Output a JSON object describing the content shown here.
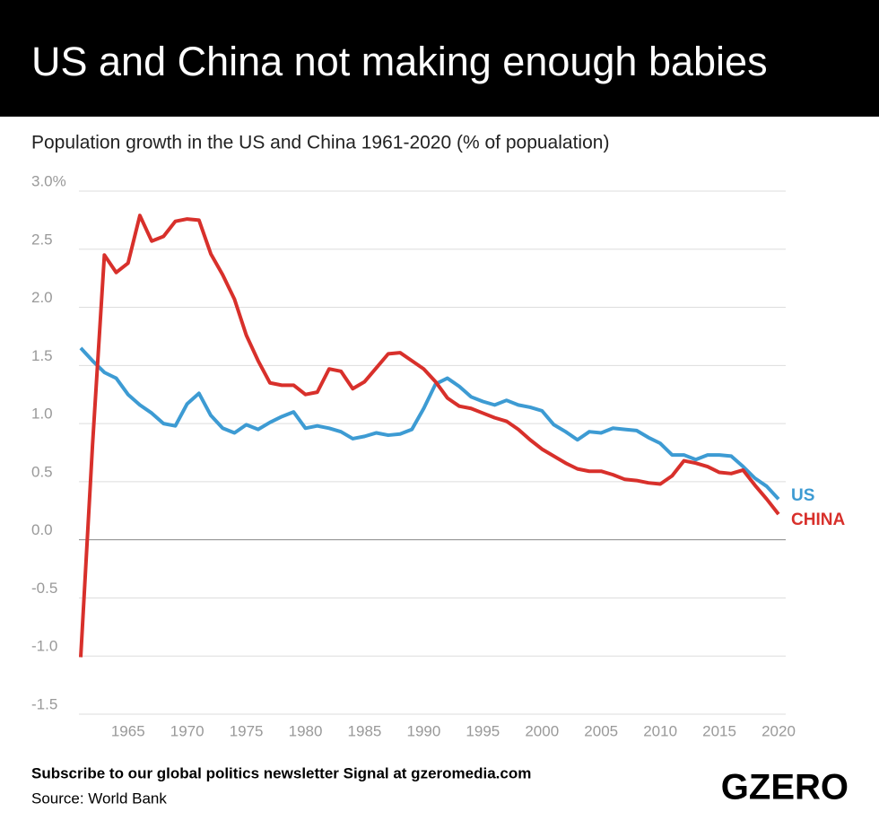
{
  "chart_data": {
    "type": "line",
    "title": "US and China not making enough babies",
    "subtitle": "Population growth in the US and China 1961-2020 (% of popualation)",
    "footer": "Subscribe to our global politics newsletter Signal at gzeromedia.com",
    "source": "Source: World Bank",
    "logo": "GZERO",
    "x": [
      1961,
      1962,
      1963,
      1964,
      1965,
      1966,
      1967,
      1968,
      1969,
      1970,
      1971,
      1972,
      1973,
      1974,
      1975,
      1976,
      1977,
      1978,
      1979,
      1980,
      1981,
      1982,
      1983,
      1984,
      1985,
      1986,
      1987,
      1988,
      1989,
      1990,
      1991,
      1992,
      1993,
      1994,
      1995,
      1996,
      1997,
      1998,
      1999,
      2000,
      2001,
      2002,
      2003,
      2004,
      2005,
      2006,
      2007,
      2008,
      2009,
      2010,
      2011,
      2012,
      2013,
      2014,
      2015,
      2016,
      2017,
      2018,
      2019,
      2020
    ],
    "series": [
      {
        "name": "US",
        "color": "#3d9bd3",
        "values": [
          1.65,
          1.54,
          1.44,
          1.39,
          1.25,
          1.16,
          1.09,
          1.0,
          0.98,
          1.17,
          1.26,
          1.07,
          0.96,
          0.92,
          0.99,
          0.95,
          1.01,
          1.06,
          1.1,
          0.96,
          0.98,
          0.96,
          0.93,
          0.87,
          0.89,
          0.92,
          0.9,
          0.91,
          0.95,
          1.13,
          1.34,
          1.39,
          1.32,
          1.23,
          1.19,
          1.16,
          1.2,
          1.16,
          1.14,
          1.11,
          0.99,
          0.93,
          0.86,
          0.93,
          0.92,
          0.96,
          0.95,
          0.94,
          0.88,
          0.83,
          0.73,
          0.73,
          0.69,
          0.73,
          0.73,
          0.72,
          0.63,
          0.53,
          0.46,
          0.35
        ]
      },
      {
        "name": "CHINA",
        "color": "#d8302b",
        "values": [
          -1.01,
          0.82,
          2.45,
          2.3,
          2.38,
          2.79,
          2.57,
          2.61,
          2.74,
          2.76,
          2.75,
          2.46,
          2.28,
          2.07,
          1.76,
          1.54,
          1.35,
          1.33,
          1.33,
          1.25,
          1.27,
          1.47,
          1.45,
          1.3,
          1.36,
          1.48,
          1.6,
          1.61,
          1.54,
          1.47,
          1.36,
          1.22,
          1.15,
          1.13,
          1.09,
          1.05,
          1.02,
          0.95,
          0.86,
          0.78,
          0.72,
          0.66,
          0.61,
          0.59,
          0.59,
          0.56,
          0.52,
          0.51,
          0.49,
          0.48,
          0.55,
          0.68,
          0.66,
          0.63,
          0.58,
          0.57,
          0.6,
          0.47,
          0.35,
          0.22
        ]
      }
    ],
    "xlim": [
      1961,
      2020
    ],
    "xticks": [
      1965,
      1970,
      1975,
      1980,
      1985,
      1990,
      1995,
      2000,
      2005,
      2010,
      2015,
      2020
    ],
    "ylim": [
      -1.5,
      3.0
    ],
    "yticks": [
      {
        "value": 3,
        "label": "3.0%"
      },
      2.5,
      {
        "value": 2,
        "label": "2.0"
      },
      1.5,
      {
        "value": 1,
        "label": "1.0"
      },
      0.5,
      {
        "value": 0,
        "label": "0.0"
      },
      -0.5,
      {
        "value": -1,
        "label": "-1.0"
      },
      -1.5
    ],
    "grid": true
  }
}
